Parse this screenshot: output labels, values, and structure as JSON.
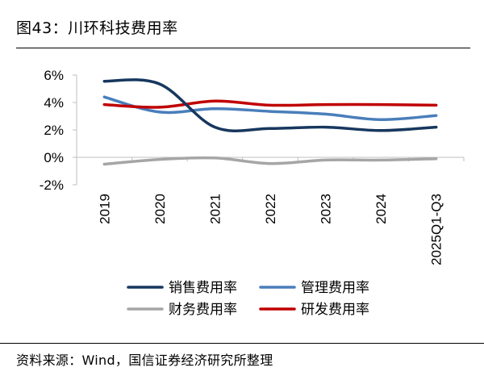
{
  "figure": {
    "title": "图43：川环科技费用率",
    "source": "资料来源：Wind，国信证券经济研究所整理"
  },
  "chart_data": {
    "type": "line",
    "title": "川环科技费用率",
    "categories": [
      "2019",
      "2020",
      "2021",
      "2022",
      "2023",
      "2024",
      "2025Q1-Q3"
    ],
    "ylim": [
      -2,
      6
    ],
    "yticks": [
      -2,
      0,
      2,
      4,
      6
    ],
    "ytick_labels": [
      "-2%",
      "0%",
      "2%",
      "4%",
      "6%"
    ],
    "xlabel": "",
    "ylabel": "",
    "grid": false,
    "legend_position": "bottom",
    "series": [
      {
        "name": "销售费用率",
        "color": "#17375e",
        "values": [
          5.55,
          5.35,
          2.2,
          2.1,
          2.2,
          1.95,
          2.2
        ]
      },
      {
        "name": "管理费用率",
        "color": "#4a7ebb",
        "values": [
          4.4,
          3.3,
          3.55,
          3.35,
          3.15,
          2.75,
          3.05
        ]
      },
      {
        "name": "财务费用率",
        "color": "#a6a6a6",
        "values": [
          -0.5,
          -0.15,
          -0.05,
          -0.45,
          -0.2,
          -0.2,
          -0.1
        ]
      },
      {
        "name": "研发费用率",
        "color": "#c00000",
        "values": [
          3.85,
          3.65,
          4.1,
          3.8,
          3.85,
          3.85,
          3.8
        ]
      }
    ]
  }
}
